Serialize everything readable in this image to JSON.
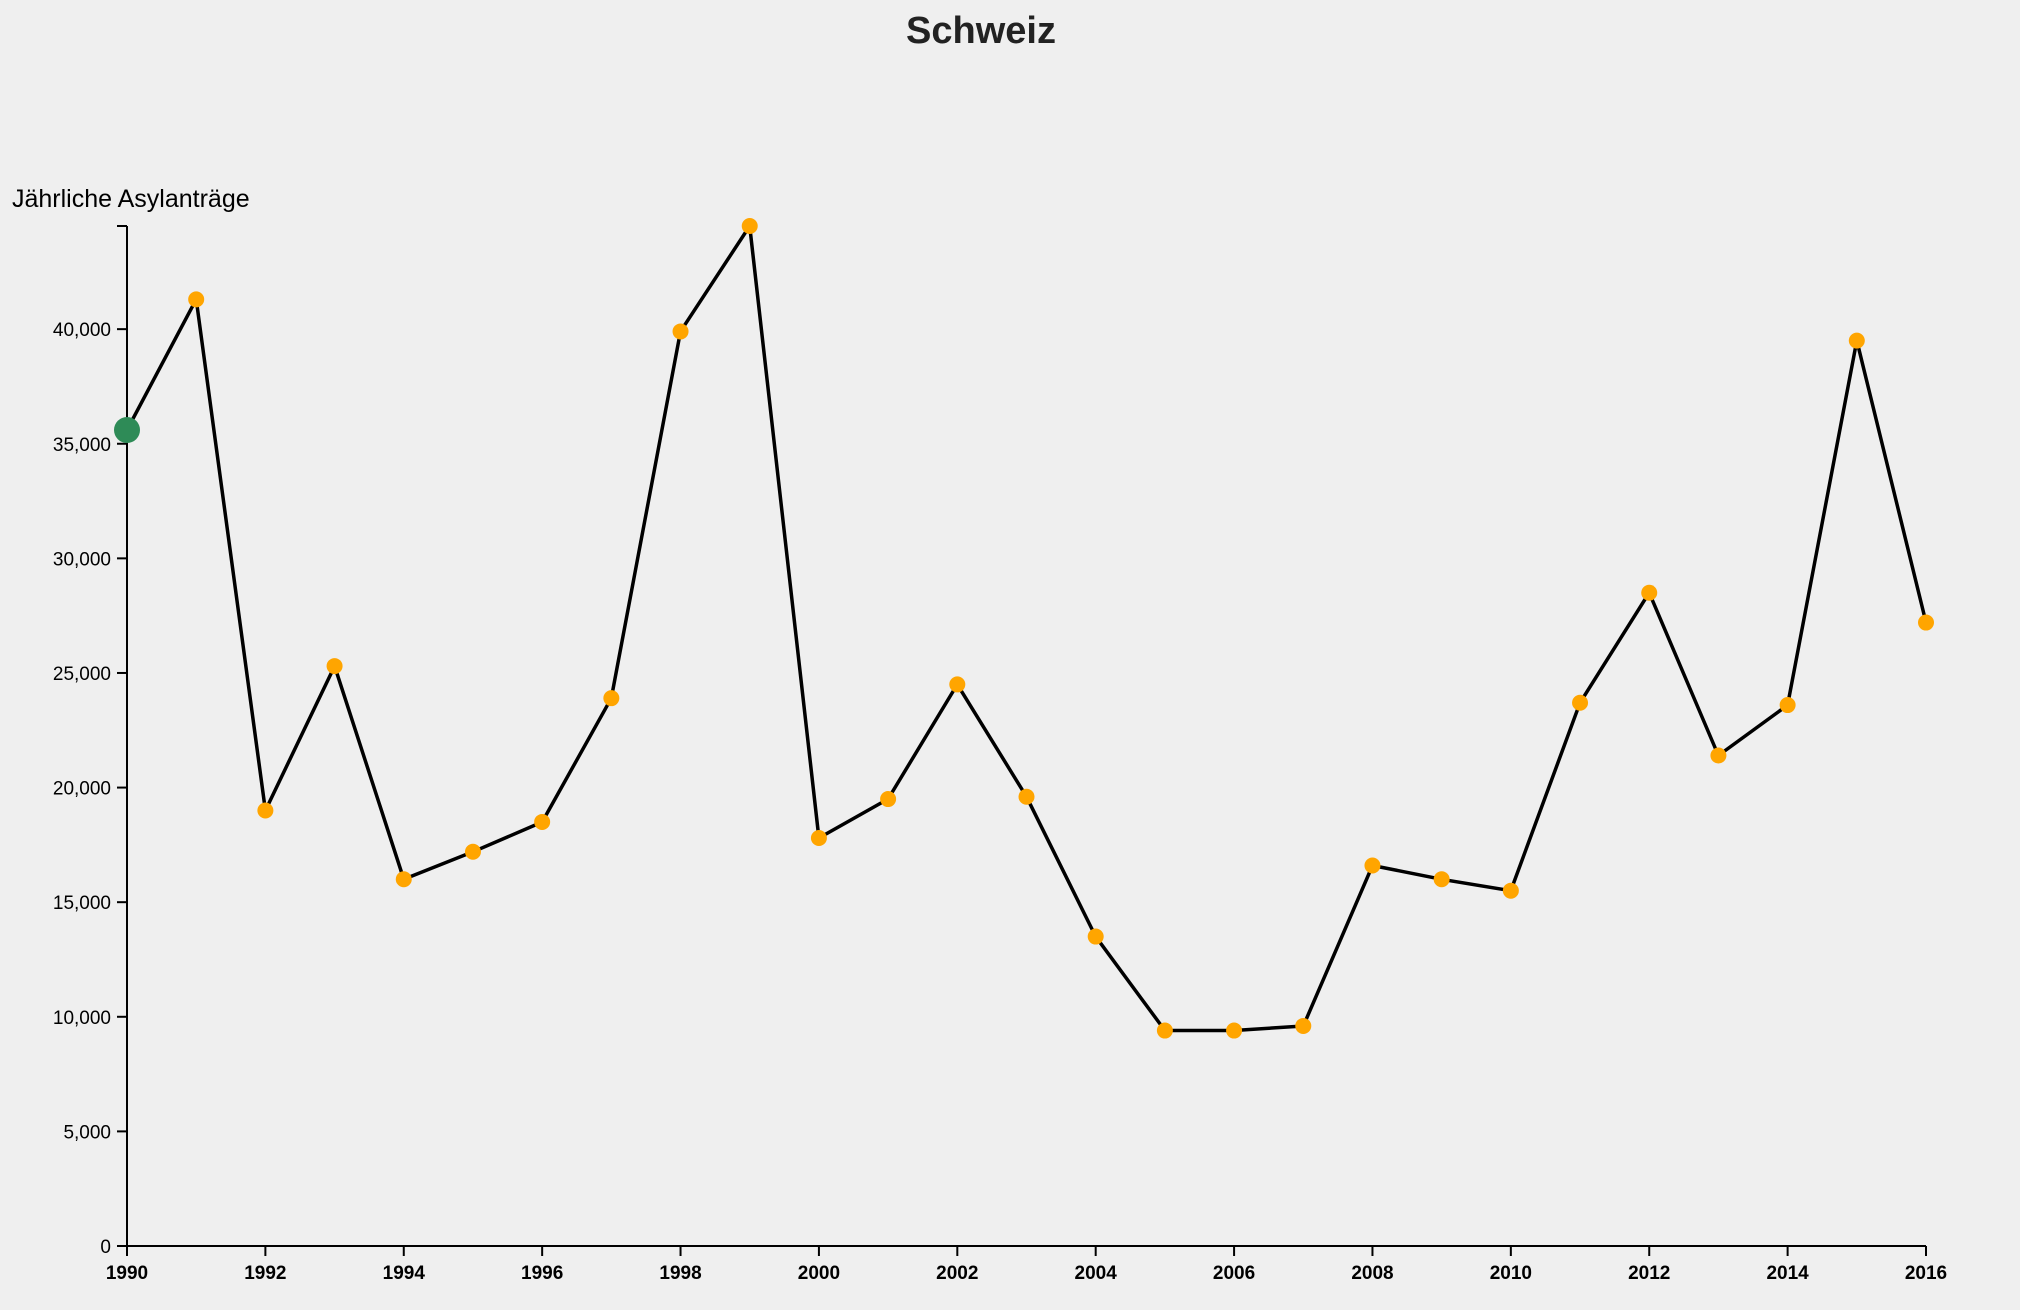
{
  "chart_data": {
    "type": "line",
    "title": "Schweiz",
    "ylabel": "Jährliche Asylanträge",
    "xlabel": "",
    "xlim": [
      1990,
      2016
    ],
    "ylim": [
      0,
      44500
    ],
    "x_ticks": [
      1990,
      1992,
      1994,
      1996,
      1998,
      2000,
      2002,
      2004,
      2006,
      2008,
      2010,
      2012,
      2014,
      2016
    ],
    "x_tick_labels": [
      "1990",
      "1992",
      "1994",
      "1996",
      "1998",
      "2000",
      "2002",
      "2004",
      "2006",
      "2008",
      "2010",
      "2012",
      "2014",
      "2016"
    ],
    "y_ticks": [
      0,
      5000,
      10000,
      15000,
      20000,
      25000,
      30000,
      35000,
      40000
    ],
    "y_tick_labels": [
      "0",
      "5,000",
      "10,000",
      "15,000",
      "20,000",
      "25,000",
      "30,000",
      "35,000",
      "40,000"
    ],
    "grid": false,
    "series": [
      {
        "x": [
          1990,
          1991,
          1992,
          1993,
          1994,
          1995,
          1996,
          1997,
          1998,
          1999,
          2000,
          2001,
          2002,
          2003,
          2004,
          2005,
          2006,
          2007,
          2008,
          2009,
          2010,
          2011,
          2012,
          2013,
          2014,
          2015,
          2016
        ],
        "values": [
          35600,
          41300,
          19000,
          25300,
          16000,
          17200,
          18500,
          23900,
          39900,
          44500,
          17800,
          19500,
          24500,
          19600,
          13500,
          9400,
          9400,
          9600,
          16600,
          16000,
          15500,
          23700,
          28500,
          21400,
          23600,
          39500,
          27200
        ]
      }
    ],
    "highlight_index": 0,
    "colors": {
      "line": "#000000",
      "marker": "#ffa500",
      "highlight": "#2e8b57",
      "axis": "#000000",
      "background": "#efefef"
    }
  }
}
